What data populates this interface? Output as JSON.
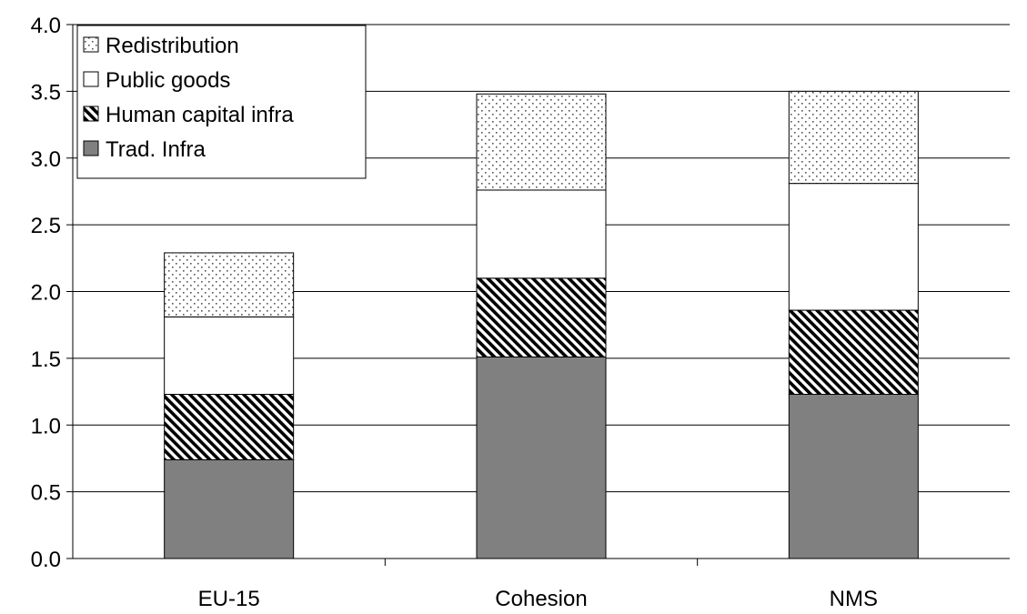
{
  "chart_data": {
    "type": "bar",
    "stacked": true,
    "categories": [
      "EU-15",
      "Cohesion",
      "NMS"
    ],
    "series": [
      {
        "name": "Trad. Infra",
        "values": [
          0.74,
          1.51,
          1.23
        ],
        "fill": "#808080",
        "pattern": "solid"
      },
      {
        "name": "Human capital infra",
        "values": [
          0.49,
          0.59,
          0.63
        ],
        "fill": "#555555",
        "pattern": "diagonal-hatch"
      },
      {
        "name": "Public goods",
        "values": [
          0.58,
          0.66,
          0.95
        ],
        "fill": "#ffffff",
        "pattern": "none"
      },
      {
        "name": "Redistribution",
        "values": [
          0.48,
          0.72,
          0.69
        ],
        "fill": "#ffffff",
        "pattern": "dots"
      }
    ],
    "yticks": [
      "0.0",
      "0.5",
      "1.0",
      "1.5",
      "2.0",
      "2.5",
      "3.0",
      "3.5",
      "4.0"
    ],
    "ylim": [
      0,
      4
    ],
    "grid": true,
    "legend_position": "top-left",
    "legend_order": [
      "Redistribution",
      "Public goods",
      "Human capital infra",
      "Trad. Infra"
    ],
    "title": "",
    "xlabel": "",
    "ylabel": ""
  }
}
